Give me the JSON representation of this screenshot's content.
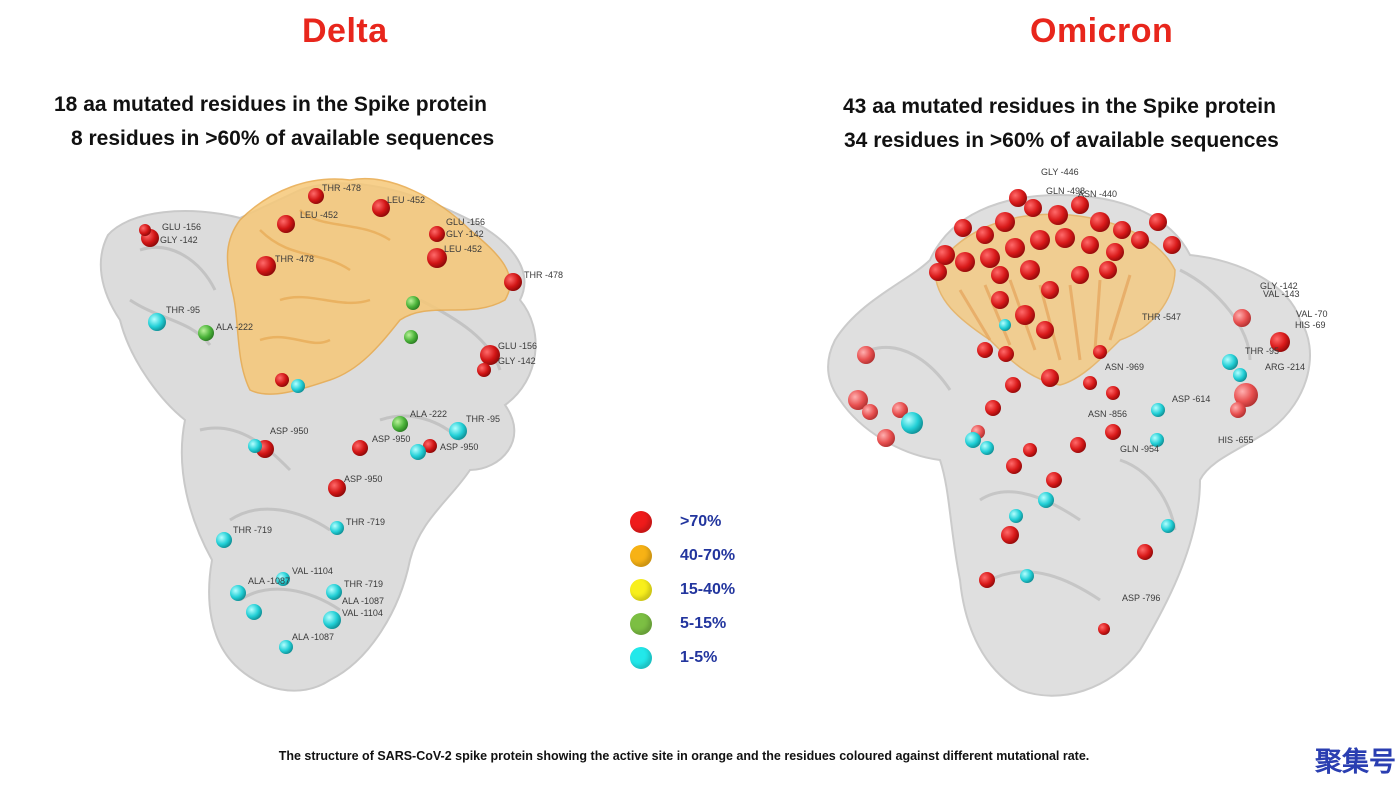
{
  "delta": {
    "title": "Delta",
    "line1": "18 aa mutated residues in the Spike protein",
    "line2": "8 residues in >60% of available sequences",
    "labels": [
      {
        "text": "THR -478"
      },
      {
        "text": "LEU -452"
      },
      {
        "text": "LEU -452"
      },
      {
        "text": "GLU -156"
      },
      {
        "text": "GLY -142"
      },
      {
        "text": "GLU -156"
      },
      {
        "text": "GLY -142"
      },
      {
        "text": "LEU -452"
      },
      {
        "text": "THR -478"
      },
      {
        "text": "THR -478"
      },
      {
        "text": "THR -95"
      },
      {
        "text": "ALA -222"
      },
      {
        "text": "GLU -156"
      },
      {
        "text": "GLY -142"
      },
      {
        "text": "ALA -222"
      },
      {
        "text": "THR -95"
      },
      {
        "text": "ASP -950"
      },
      {
        "text": "ASP -950"
      },
      {
        "text": "ASP -950"
      },
      {
        "text": "ASP -950"
      },
      {
        "text": "THR -719"
      },
      {
        "text": "THR -719"
      },
      {
        "text": "VAL -1104"
      },
      {
        "text": "ALA -1087"
      },
      {
        "text": "THR -719"
      },
      {
        "text": "ALA -1087"
      },
      {
        "text": "VAL -1104"
      },
      {
        "text": "ALA -1087"
      }
    ]
  },
  "omicron": {
    "title": "Omicron",
    "line1": "43 aa mutated residues in the Spike protein",
    "line2": "34 residues in >60% of available sequences",
    "labels": [
      {
        "text": "GLY -446"
      },
      {
        "text": "GLN -498"
      },
      {
        "text": "ASN -440"
      },
      {
        "text": "GLY -142"
      },
      {
        "text": "VAL -143"
      },
      {
        "text": "VAL -70"
      },
      {
        "text": "HIS -69"
      },
      {
        "text": "THR -547"
      },
      {
        "text": "THR -95"
      },
      {
        "text": "ARG -214"
      },
      {
        "text": "ASN -969"
      },
      {
        "text": "ASP -614"
      },
      {
        "text": "ASN -856"
      },
      {
        "text": "HIS -655"
      },
      {
        "text": "GLN -954"
      },
      {
        "text": "ASP -796"
      }
    ]
  },
  "legend": {
    "items": [
      {
        "label": ">70%",
        "color": "#ef1b1b"
      },
      {
        "label": "40-70%",
        "color": "#f7b215"
      },
      {
        "label": "15-40%",
        "color": "#f8ef1c"
      },
      {
        "label": "5-15%",
        "color": "#7cbf43"
      },
      {
        "label": "1-5%",
        "color": "#22e8ea"
      }
    ]
  },
  "colors": {
    "protein": "#d7d7d7",
    "active_site": "#f6c878",
    "title": "#e8261c",
    "legend_text": "#22359e",
    "watermark": "#2a3eb1"
  },
  "caption": "The structure of SARS-CoV-2 spike protein showing the active site in orange and the residues coloured against different mutational rate.",
  "watermark": "聚集号"
}
